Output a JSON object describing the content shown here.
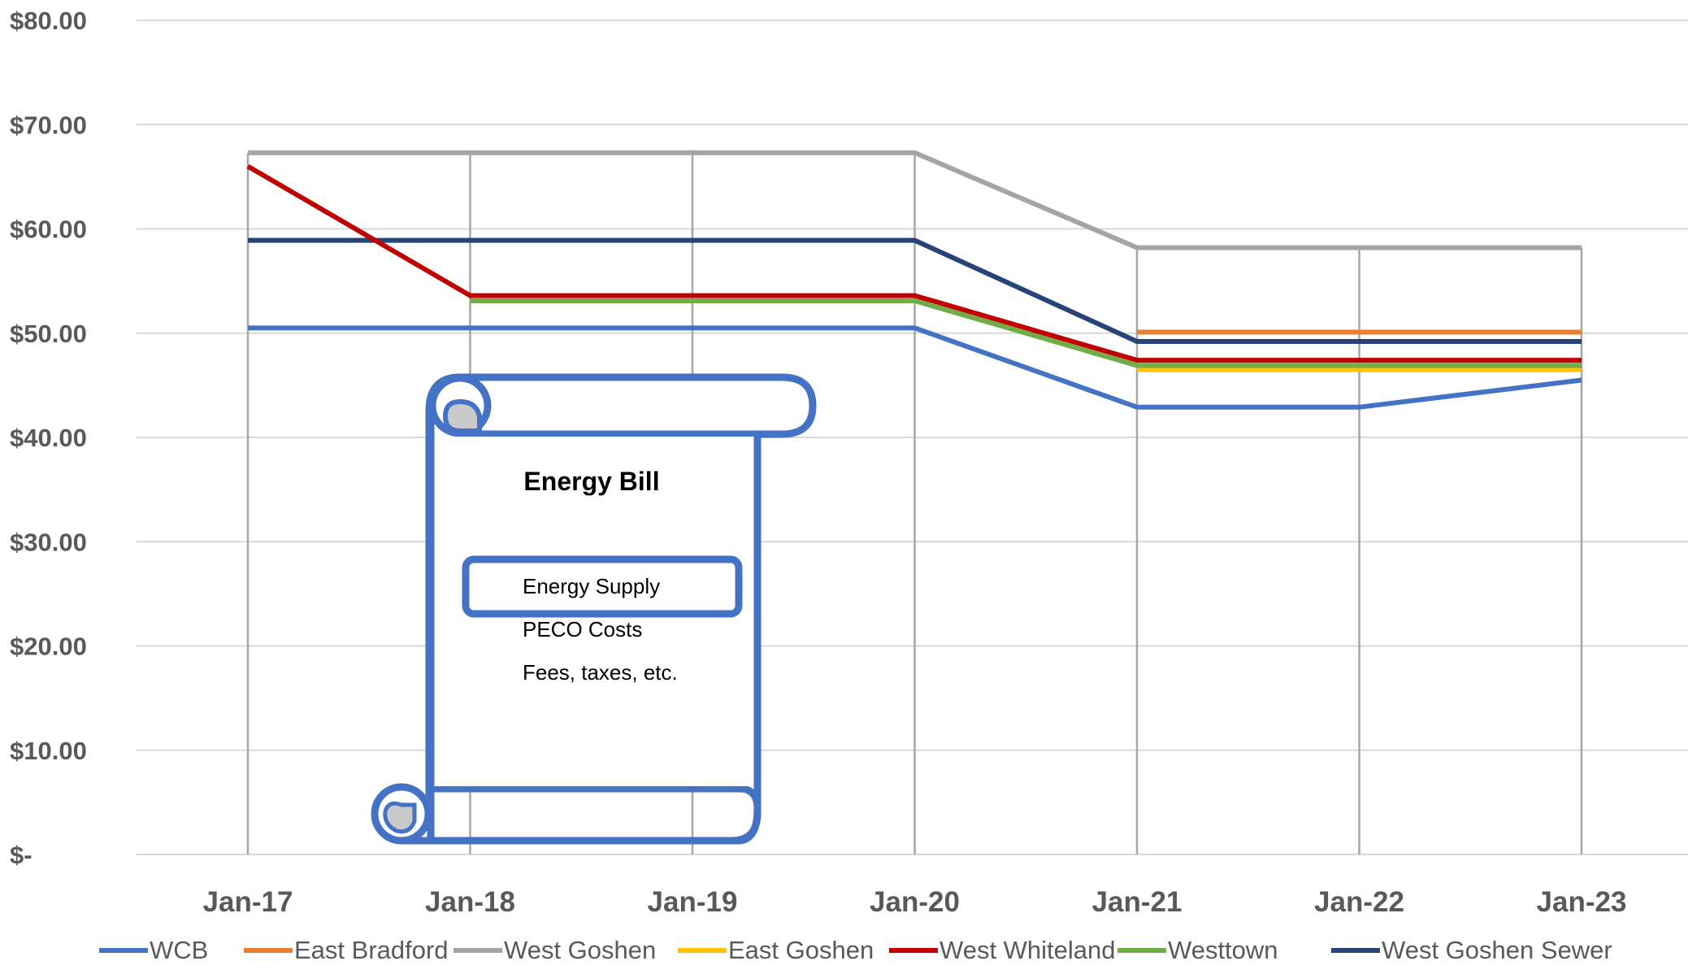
{
  "chart_data": {
    "type": "line",
    "title": "",
    "xlabel": "",
    "ylabel": "",
    "categories": [
      "Jan-17",
      "Jan-18",
      "Jan-19",
      "Jan-20",
      "Jan-21",
      "Jan-22",
      "Jan-23"
    ],
    "y_tick_labels": [
      "$-",
      "$10.00",
      "$20.00",
      "$30.00",
      "$40.00",
      "$50.00",
      "$60.00",
      "$70.00",
      "$80.00"
    ],
    "ylim": [
      0,
      80
    ],
    "grid": {
      "horizontal": true,
      "vertical": true
    },
    "legend_position": "bottom",
    "series": [
      {
        "name": "WCB",
        "color": "#4472C4",
        "values": [
          50.5,
          50.5,
          50.5,
          50.5,
          42.9,
          42.9,
          45.5
        ]
      },
      {
        "name": "East Bradford",
        "color": "#ED7D31",
        "values": [
          null,
          null,
          null,
          null,
          50.1,
          50.1,
          50.1
        ]
      },
      {
        "name": "West Goshen",
        "color": "#A5A5A5",
        "values": [
          67.3,
          67.3,
          67.3,
          67.3,
          58.2,
          58.2,
          58.2
        ]
      },
      {
        "name": "East Goshen",
        "color": "#FFC000",
        "values": [
          null,
          null,
          null,
          null,
          46.5,
          46.5,
          46.5
        ]
      },
      {
        "name": "West Whiteland",
        "color": "#C00000",
        "values": [
          66.0,
          53.6,
          53.6,
          53.6,
          47.4,
          47.4,
          47.4
        ]
      },
      {
        "name": "Westtown",
        "color": "#70AD47",
        "values": [
          null,
          53.1,
          53.1,
          53.1,
          46.9,
          46.9,
          46.9
        ]
      },
      {
        "name": "West Goshen Sewer",
        "color": "#264478",
        "values": [
          58.9,
          58.9,
          58.9,
          58.9,
          49.2,
          49.2,
          49.2
        ]
      }
    ]
  },
  "callout": {
    "shape": "vertical-scroll",
    "border_color": "#4472C4",
    "curl_fill": "#C9C9C9",
    "title": "Energy Bill",
    "items": [
      "Energy Supply",
      "PECO Costs",
      "Fees, taxes, etc."
    ],
    "highlighted_item": "Energy Supply"
  }
}
